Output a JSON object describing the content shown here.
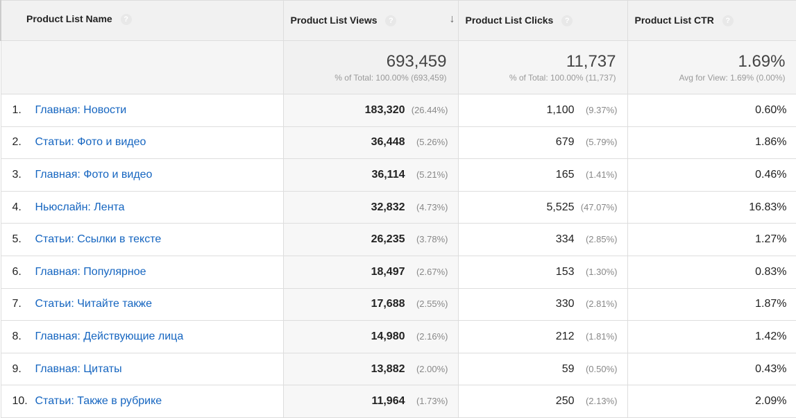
{
  "headers": {
    "name": "Product List Name",
    "views": "Product List Views",
    "clicks": "Product List Clicks",
    "ctr": "Product List CTR"
  },
  "help_glyph": "?",
  "sort_glyph": "↓",
  "totals": {
    "views": "693,459",
    "views_sub": "% of Total: 100.00% (693,459)",
    "clicks": "11,737",
    "clicks_sub": "% of Total: 100.00% (11,737)",
    "ctr": "1.69%",
    "ctr_sub": "Avg for View: 1.69% (0.00%)"
  },
  "rows": [
    {
      "idx": "1.",
      "name": "Главная: Новости",
      "views": "183,320",
      "views_pct": "(26.44%)",
      "clicks": "1,100",
      "clicks_pct": "(9.37%)",
      "ctr": "0.60%"
    },
    {
      "idx": "2.",
      "name": "Статьи: Фото и видео",
      "views": "36,448",
      "views_pct": "(5.26%)",
      "clicks": "679",
      "clicks_pct": "(5.79%)",
      "ctr": "1.86%"
    },
    {
      "idx": "3.",
      "name": "Главная: Фото и видео",
      "views": "36,114",
      "views_pct": "(5.21%)",
      "clicks": "165",
      "clicks_pct": "(1.41%)",
      "ctr": "0.46%"
    },
    {
      "idx": "4.",
      "name": "Ньюслайн: Лента",
      "views": "32,832",
      "views_pct": "(4.73%)",
      "clicks": "5,525",
      "clicks_pct": "(47.07%)",
      "ctr": "16.83%"
    },
    {
      "idx": "5.",
      "name": "Статьи: Ссылки в тексте",
      "views": "26,235",
      "views_pct": "(3.78%)",
      "clicks": "334",
      "clicks_pct": "(2.85%)",
      "ctr": "1.27%"
    },
    {
      "idx": "6.",
      "name": "Главная: Популярное",
      "views": "18,497",
      "views_pct": "(2.67%)",
      "clicks": "153",
      "clicks_pct": "(1.30%)",
      "ctr": "0.83%"
    },
    {
      "idx": "7.",
      "name": "Статьи: Читайте также",
      "views": "17,688",
      "views_pct": "(2.55%)",
      "clicks": "330",
      "clicks_pct": "(2.81%)",
      "ctr": "1.87%"
    },
    {
      "idx": "8.",
      "name": "Главная: Действующие лица",
      "views": "14,980",
      "views_pct": "(2.16%)",
      "clicks": "212",
      "clicks_pct": "(1.81%)",
      "ctr": "1.42%"
    },
    {
      "idx": "9.",
      "name": "Главная: Цитаты",
      "views": "13,882",
      "views_pct": "(2.00%)",
      "clicks": "59",
      "clicks_pct": "(0.50%)",
      "ctr": "0.43%"
    },
    {
      "idx": "10.",
      "name": "Статьи: Также в рубрике",
      "views": "11,964",
      "views_pct": "(1.73%)",
      "clicks": "250",
      "clicks_pct": "(2.13%)",
      "ctr": "2.09%"
    }
  ]
}
